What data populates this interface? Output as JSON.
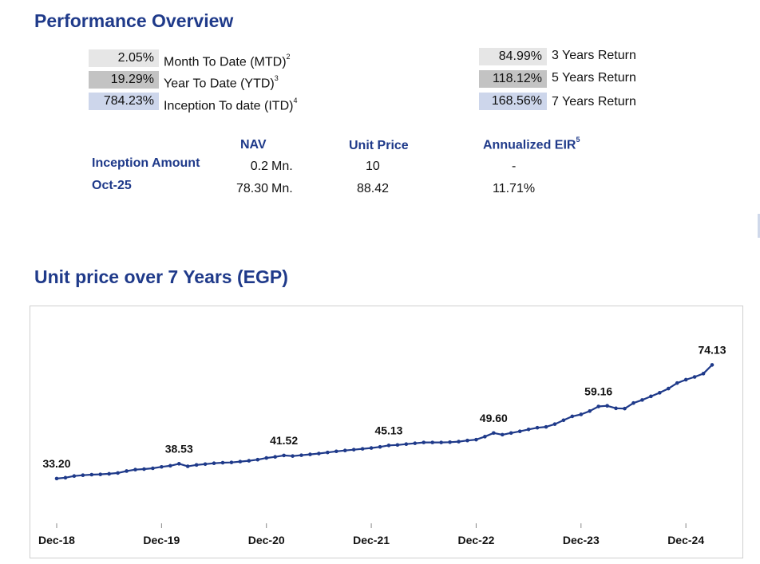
{
  "performance": {
    "title": "Performance Overview",
    "left_returns": [
      {
        "value": "2.05%",
        "label": "Month To Date (MTD)",
        "sup": "2"
      },
      {
        "value": "19.29%",
        "label": "Year To Date (YTD)",
        "sup": "3"
      },
      {
        "value": "784.23%",
        "label": "Inception To date (ITD)",
        "sup": "4"
      }
    ],
    "right_returns": [
      {
        "value": "84.99%",
        "label": "3 Years Return"
      },
      {
        "value": "118.12%",
        "label": "5 Years Return"
      },
      {
        "value": "168.56%",
        "label": "7 Years Return"
      }
    ]
  },
  "nav_table": {
    "headers": {
      "nav": "NAV",
      "unit_price": "Unit Price",
      "eir": "Annualized EIR",
      "eir_sup": "5"
    },
    "rows": [
      {
        "label": "Inception Amount",
        "nav": "0.2",
        "unit": "Mn.",
        "unit_price": "10",
        "eir": "-"
      },
      {
        "label": "Oct-25",
        "nav": "78.30",
        "unit": "Mn.",
        "unit_price": "88.42",
        "eir": "11.71%"
      }
    ]
  },
  "chart_data": {
    "type": "line",
    "title": "Unit price over 7 Years (EGP)",
    "xlabel": "",
    "ylabel": "",
    "x_tick_labels": [
      "Dec-18",
      "Dec-19",
      "Dec-20",
      "Dec-21",
      "Dec-22",
      "Dec-23",
      "Dec-24"
    ],
    "ylim": [
      0,
      80
    ],
    "grid": false,
    "series": [
      {
        "name": "Unit price",
        "color": "#1f3a8a",
        "values": [
          33.2,
          33.5,
          34.1,
          34.4,
          34.6,
          34.7,
          34.9,
          35.2,
          35.9,
          36.4,
          36.6,
          36.9,
          37.4,
          37.8,
          38.53,
          37.6,
          38.1,
          38.4,
          38.7,
          38.9,
          39.0,
          39.3,
          39.6,
          40.0,
          40.6,
          41.0,
          41.52,
          41.3,
          41.6,
          41.9,
          42.2,
          42.6,
          43.0,
          43.3,
          43.6,
          43.9,
          44.2,
          44.6,
          45.13,
          45.3,
          45.6,
          45.9,
          46.2,
          46.2,
          46.2,
          46.3,
          46.5,
          46.9,
          47.2,
          48.3,
          49.6,
          49.0,
          49.6,
          50.2,
          50.9,
          51.5,
          51.8,
          52.8,
          54.2,
          55.6,
          56.3,
          57.5,
          59.16,
          59.4,
          58.5,
          58.4,
          60.4,
          61.5,
          62.8,
          64.1,
          65.6,
          67.6,
          68.8,
          69.8,
          71.0,
          74.13
        ]
      }
    ],
    "data_labels": [
      {
        "index": 0,
        "text": "33.20"
      },
      {
        "index": 14,
        "text": "38.53"
      },
      {
        "index": 26,
        "text": "41.52"
      },
      {
        "index": 38,
        "text": "45.13"
      },
      {
        "index": 50,
        "text": "49.60"
      },
      {
        "index": 62,
        "text": "59.16"
      },
      {
        "index": 75,
        "text": "74.13"
      }
    ]
  }
}
